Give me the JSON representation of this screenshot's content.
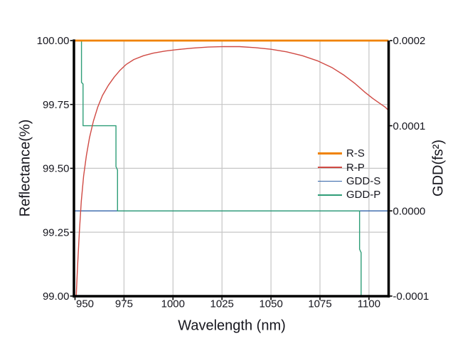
{
  "figure": {
    "background": "#ffffff",
    "text_color": "#16161e",
    "grid_color": "#c6c6c6",
    "axis_color": "#000000"
  },
  "chart_data": {
    "type": "line",
    "title": "",
    "xlabel": "Wavelength (nm)",
    "ylabel_left": "Reflectance(%)",
    "ylabel_right": "GDD(fs²)",
    "xlim": [
      950,
      1110
    ],
    "ylim_left": [
      99.0,
      100.0
    ],
    "ylim_right": [
      -0.0001,
      0.0002
    ],
    "grid": true,
    "legend_position": "center-right-inside",
    "x_ticks": [
      {
        "value": 950,
        "label": "950"
      },
      {
        "value": 975,
        "label": "975"
      },
      {
        "value": 1000,
        "label": "1000"
      },
      {
        "value": 1025,
        "label": "1025"
      },
      {
        "value": 1050,
        "label": "1050"
      },
      {
        "value": 1075,
        "label": "1075"
      },
      {
        "value": 1100,
        "label": "1100"
      }
    ],
    "y_ticks_left": [
      {
        "value": 100.0,
        "label": "100.00"
      },
      {
        "value": 99.75,
        "label": "99.75"
      },
      {
        "value": 99.5,
        "label": "99.50"
      },
      {
        "value": 99.25,
        "label": "99.25"
      },
      {
        "value": 99.0,
        "label": "99.00"
      }
    ],
    "y_ticks_right": [
      {
        "value": 0.0002,
        "label": "0.0002"
      },
      {
        "value": 0.0001,
        "label": "0.0001"
      },
      {
        "value": 0.0,
        "label": "0.0000"
      },
      {
        "value": -0.0001,
        "label": "-0.0001"
      }
    ],
    "series": [
      {
        "name": "R-S",
        "axis": "left",
        "color": "#f08200",
        "width": 2.8,
        "points": [
          [
            950,
            100.0
          ],
          [
            1110,
            100.0
          ]
        ]
      },
      {
        "name": "R-P",
        "axis": "left",
        "color": "#d04a44",
        "width": 1.4,
        "points": [
          [
            950.6,
            99.0
          ],
          [
            951.2,
            99.1
          ],
          [
            952.2,
            99.25
          ],
          [
            953.2,
            99.37
          ],
          [
            954.4,
            99.47
          ],
          [
            955.8,
            99.55
          ],
          [
            957.4,
            99.62
          ],
          [
            959.4,
            99.685
          ],
          [
            961.6,
            99.74
          ],
          [
            964,
            99.785
          ],
          [
            967,
            99.825
          ],
          [
            970,
            99.857
          ],
          [
            973,
            99.884
          ],
          [
            976,
            99.906
          ],
          [
            980,
            99.926
          ],
          [
            985,
            99.941
          ],
          [
            990,
            99.951
          ],
          [
            996,
            99.959
          ],
          [
            1002,
            99.9645
          ],
          [
            1010,
            99.9705
          ],
          [
            1018,
            99.9745
          ],
          [
            1026,
            99.9765
          ],
          [
            1034,
            99.9763
          ],
          [
            1042,
            99.9725
          ],
          [
            1050,
            99.966
          ],
          [
            1058,
            99.956
          ],
          [
            1066,
            99.941
          ],
          [
            1074,
            99.92
          ],
          [
            1081,
            99.895
          ],
          [
            1087,
            99.866
          ],
          [
            1093,
            99.831
          ],
          [
            1098,
            99.7975
          ],
          [
            1102,
            99.773
          ],
          [
            1105,
            99.757
          ],
          [
            1108,
            99.741
          ],
          [
            1110,
            99.727
          ]
        ]
      },
      {
        "name": "GDD-S",
        "axis": "right",
        "color": "#3263a8",
        "width": 1.4,
        "points": [
          [
            950,
            0.0
          ],
          [
            1110,
            0.0
          ]
        ]
      },
      {
        "name": "GDD-P",
        "axis": "right",
        "color": "#2f9e78",
        "width": 1.4,
        "points": [
          [
            950,
            0.0002
          ],
          [
            953.3,
            0.0002
          ],
          [
            953.3,
            0.000151
          ],
          [
            954.1,
            0.000149
          ],
          [
            954.1,
            0.0001
          ],
          [
            970.9,
            0.0001
          ],
          [
            970.9,
            5.2e-05
          ],
          [
            971.7,
            4.8e-05
          ],
          [
            971.7,
            0.0
          ],
          [
            1095.2,
            0.0
          ],
          [
            1095.2,
            -4.5e-05
          ],
          [
            1096,
            -4.9e-05
          ],
          [
            1096,
            -9.95e-05
          ]
        ]
      }
    ]
  }
}
